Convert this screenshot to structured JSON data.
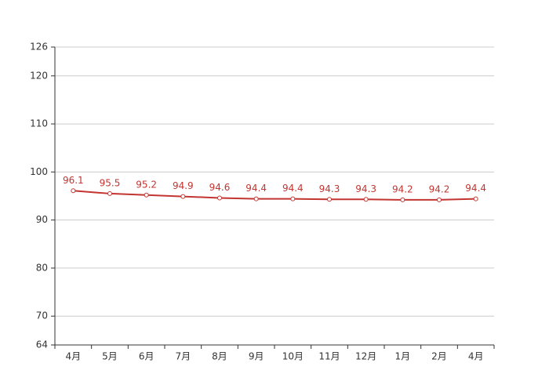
{
  "chart_data": {
    "type": "line",
    "categories": [
      "4月",
      "5月",
      "6月",
      "7月",
      "8月",
      "9月",
      "10月",
      "11月",
      "12月",
      "1月",
      "2月",
      "4月"
    ],
    "series": [
      {
        "color": "#c23531",
        "values": [
          96.1,
          95.5,
          95.2,
          94.9,
          94.6,
          94.4,
          94.4,
          94.3,
          94.3,
          94.2,
          94.2,
          94.4
        ]
      }
    ],
    "ylim": [
      64,
      126
    ],
    "yticks": [
      64,
      70,
      80,
      90,
      100,
      110,
      120,
      126
    ],
    "grid": true,
    "data_labels": true
  }
}
